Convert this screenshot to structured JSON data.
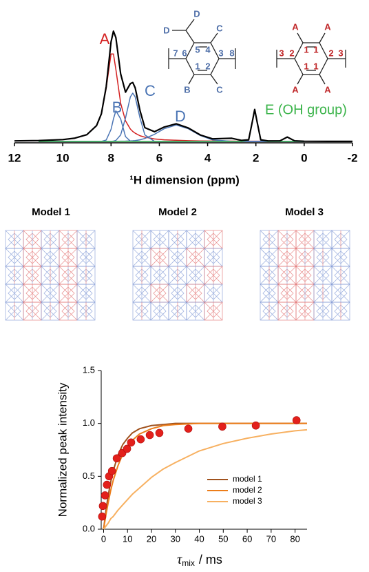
{
  "chart_data": [
    {
      "type": "line",
      "xlabel": "¹H dimension (ppm)",
      "x": [
        12,
        11,
        10,
        9.5,
        9,
        8.6,
        8.4,
        8.2,
        8.0,
        7.9,
        7.8,
        7.6,
        7.4,
        7.2,
        7.1,
        7.0,
        6.8,
        6.6,
        6.2,
        5.8,
        5.3,
        4.8,
        4.3,
        3.8,
        3.0,
        2.6,
        2.3,
        2.15,
        2.05,
        1.95,
        1.8,
        1.5,
        1.0,
        0.7,
        0.4,
        0,
        -1,
        -2
      ],
      "xlim": [
        12,
        -2
      ],
      "xticks": [
        12,
        10,
        8,
        6,
        4,
        2,
        0,
        -2
      ],
      "ylim": [
        0,
        105
      ],
      "series": [
        {
          "name": "A",
          "color": "#d42020",
          "values": [
            null,
            0.8,
            1.7,
            3.0,
            6.2,
            14.4,
            25.2,
            48.6,
            79.7,
            79.7,
            65.7,
            34.7,
            18.8,
            11.3,
            9.1,
            7.5,
            5.2,
            3.9,
            2.3,
            1.5,
            1.1,
            0.7,
            0.5,
            0.4,
            0.3,
            0.2,
            0.2,
            0.2,
            0.2,
            0.2,
            0.2,
            0.2,
            0.2,
            0.1,
            0.1,
            0.1,
            null,
            null
          ]
        },
        {
          "name": "B",
          "color": "#4a74b4",
          "values": [
            null,
            0,
            0,
            0,
            0,
            0,
            0,
            1.3,
            11,
            20.5,
            27.9,
            20.5,
            4.4,
            0.3,
            0,
            0,
            0,
            0,
            0,
            0,
            0,
            0,
            0,
            0,
            0,
            0,
            0,
            0,
            0,
            0,
            0,
            0,
            0,
            0,
            0,
            0,
            null,
            null
          ]
        },
        {
          "name": "C",
          "color": "#4a74b4",
          "values": [
            null,
            0,
            0,
            0,
            0,
            0,
            0,
            0,
            0,
            0.3,
            0.9,
            6,
            21.4,
            40.6,
            44,
            40.6,
            21.4,
            6,
            0.1,
            0,
            0,
            0,
            0,
            0,
            0,
            0,
            0,
            0,
            0,
            0,
            0,
            0,
            0,
            0,
            0,
            0,
            null,
            null
          ]
        },
        {
          "name": "D",
          "color": "#4a74b4",
          "values": [
            null,
            0,
            0,
            0,
            0,
            0,
            0,
            0,
            0,
            0,
            0.1,
            0.2,
            0.3,
            0.5,
            0.6,
            0.8,
            1.5,
            2.7,
            6.5,
            11.6,
            15,
            11.6,
            5.4,
            1.5,
            0.1,
            0,
            0,
            0,
            0,
            0,
            0,
            0,
            0,
            0,
            0,
            0,
            null,
            null
          ]
        },
        {
          "name": "E (OH group)",
          "color": "#3cb44b",
          "values": [
            null,
            0,
            0,
            0,
            0,
            0,
            0,
            0,
            0,
            0,
            0,
            0,
            0,
            0,
            0,
            0,
            0,
            0,
            0,
            0,
            0,
            0,
            0,
            0,
            0,
            0,
            1.3,
            17.6,
            29,
            17.6,
            1.3,
            0,
            0,
            0,
            0,
            0,
            null,
            null
          ]
        },
        {
          "color": "#000000",
          "values": [
            0.5,
            0.8,
            1.7,
            3.0,
            6.2,
            14.4,
            25.2,
            49.9,
            90.7,
            100.5,
            94.6,
            61.4,
            44.9,
            52.7,
            53.7,
            48.9,
            28.1,
            12.6,
            8.9,
            13.1,
            16.1,
            12.3,
            5.9,
            2.4,
            2.9,
            1.0,
            1.5,
            17.8,
            29.2,
            17.8,
            1.5,
            0.5,
            0.6,
            4.0,
            0.6,
            0.2,
            0.1,
            0.1
          ]
        }
      ]
    },
    {
      "type": "line",
      "ylabel": "Normalized peak intensity",
      "xlabel": [
        "τ",
        "mix",
        "/ ms"
      ],
      "xlim": [
        -1,
        85
      ],
      "xticks": [
        0,
        10,
        20,
        30,
        40,
        50,
        60,
        70,
        80
      ],
      "ylim": [
        0,
        1.5
      ],
      "yticks": [
        {
          "value": 0,
          "label": "0.0"
        },
        0.5,
        {
          "value": 1,
          "label": "1.0"
        },
        1.5
      ],
      "legend": "lower right",
      "x": [
        0,
        1,
        2,
        3,
        4,
        6,
        8,
        10,
        12,
        15,
        20,
        25,
        30,
        40,
        50,
        60,
        70,
        80,
        85
      ],
      "series": [
        {
          "name": "model 1",
          "color": "#a0521e",
          "values": [
            0,
            0.18,
            0.33,
            0.45,
            0.55,
            0.7,
            0.8,
            0.86,
            0.91,
            0.95,
            0.98,
            0.99,
            1.0,
            1.0,
            1.0,
            1.0,
            1.0,
            1.0,
            1.0
          ]
        },
        {
          "name": "model 2",
          "color": "#ec7d1a",
          "values": [
            0,
            0.14,
            0.26,
            0.37,
            0.46,
            0.6,
            0.71,
            0.79,
            0.84,
            0.9,
            0.95,
            0.98,
            0.99,
            1.0,
            1.0,
            1.0,
            1.0,
            1.0,
            1.0
          ]
        },
        {
          "name": "model 3",
          "color": "#f7b060",
          "values": [
            0,
            0.03,
            0.06,
            0.1,
            0.12,
            0.18,
            0.23,
            0.28,
            0.33,
            0.39,
            0.49,
            0.57,
            0.63,
            0.74,
            0.81,
            0.86,
            0.9,
            0.93,
            0.94
          ]
        }
      ],
      "points": {
        "color": "#e3201b",
        "x": [
          -0.6,
          -0.3,
          0.6,
          1.4,
          2.3,
          3.5,
          5.5,
          7.8,
          9.8,
          11.5,
          15.5,
          19.3,
          23.3,
          35.4,
          49.6,
          63.6,
          80.6
        ],
        "values": [
          0.12,
          0.22,
          0.32,
          0.42,
          0.5,
          0.55,
          0.67,
          0.72,
          0.76,
          0.82,
          0.85,
          0.89,
          0.91,
          0.95,
          0.97,
          0.98,
          1.03
        ]
      }
    }
  ],
  "molecules": [
    [
      "D",
      "D",
      "C",
      "7",
      "6",
      "5",
      "4",
      "3",
      "8",
      "1",
      "2",
      "B",
      "C"
    ],
    [
      "A",
      "A",
      "3",
      "2",
      "1",
      "1",
      "2",
      "3",
      "1",
      "1",
      "A",
      "A"
    ]
  ],
  "models": [
    "Model 1",
    "Model 2",
    "Model 3"
  ]
}
